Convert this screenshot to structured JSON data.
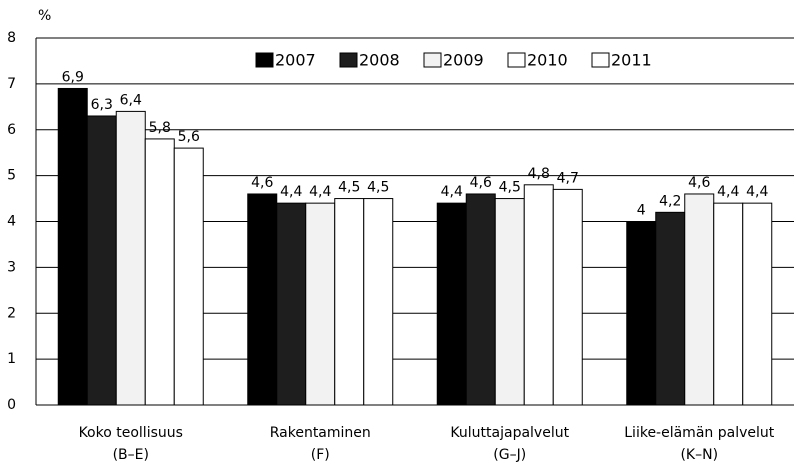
{
  "chart_data": {
    "type": "bar",
    "ylabel": "%",
    "categories": [
      [
        "Koko teollisuus",
        "(B–E)"
      ],
      [
        "Rakentaminen",
        "(F)"
      ],
      [
        "Kuluttajapalvelut",
        "(G–J)"
      ],
      [
        "Liike-elämän palvelut",
        "(K–N)"
      ]
    ],
    "series": [
      {
        "name": "2007",
        "color": "#000000",
        "values": [
          6.9,
          4.6,
          4.4,
          4
        ],
        "value_labels": [
          "6,9",
          "4,6",
          "4,4",
          "4"
        ]
      },
      {
        "name": "2008",
        "color": "#1e1e1e",
        "values": [
          6.3,
          4.4,
          4.6,
          4.2
        ],
        "value_labels": [
          "6,3",
          "4,4",
          "4,6",
          "4,2"
        ]
      },
      {
        "name": "2009",
        "color": "#f2f2f2",
        "values": [
          6.4,
          4.4,
          4.5,
          4.6
        ],
        "value_labels": [
          "6,4",
          "4,4",
          "4,5",
          "4,6"
        ]
      },
      {
        "name": "2010",
        "color": "#ffffff",
        "values": [
          5.8,
          4.5,
          4.8,
          4.4
        ],
        "value_labels": [
          "5,8",
          "4,5",
          "4,8",
          "4,4"
        ]
      },
      {
        "name": "2011",
        "color": "#ffffff",
        "values": [
          5.6,
          4.5,
          4.7,
          4.4
        ],
        "value_labels": [
          "5,6",
          "4,5",
          "4,7",
          "4,4"
        ]
      }
    ],
    "ylim": [
      0,
      8
    ],
    "yticks": [
      0,
      1,
      2,
      3,
      4,
      5,
      6,
      7,
      8
    ],
    "grid": true,
    "legend": "top"
  }
}
